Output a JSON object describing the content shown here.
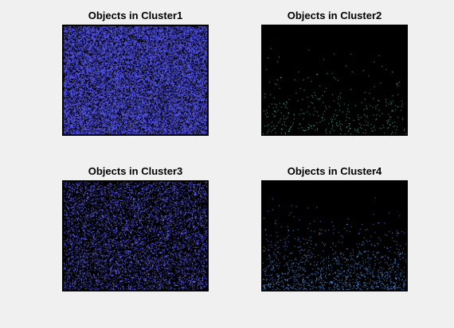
{
  "figure": {
    "background_color": "#f0f0f0",
    "subplots": [
      {
        "title": "Objects in Cluster1",
        "image_background": "#000000",
        "pixel_color": "#4b4bd6",
        "pixel_density": 0.62
      },
      {
        "title": "Objects in Cluster2",
        "image_background": "#000000",
        "pixel_color": "#3fbfa0",
        "pixel_density": 0.01
      },
      {
        "title": "Objects in Cluster3",
        "image_background": "#000000",
        "pixel_color": "#5a5aee",
        "pixel_density": 0.22
      },
      {
        "title": "Objects in Cluster4",
        "image_background": "#000000",
        "pixel_color": "#4f8fe6",
        "pixel_density": 0.03
      }
    ]
  }
}
